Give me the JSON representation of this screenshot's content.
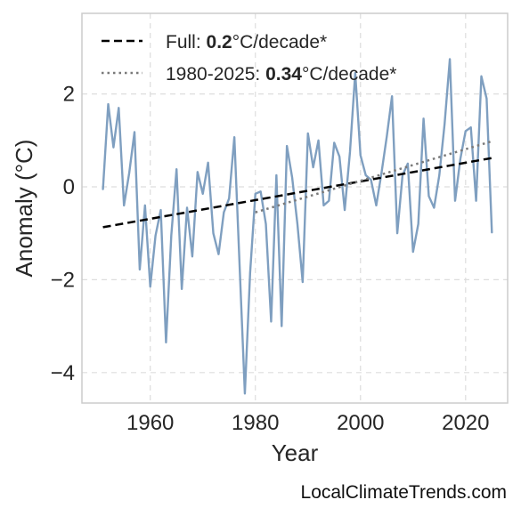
{
  "chart_data": {
    "type": "line",
    "xlabel": "Year",
    "ylabel": "Anomaly (°C)",
    "xlim": [
      1947,
      2028
    ],
    "ylim": [
      -4.7,
      3.8
    ],
    "x_ticks": [
      1960,
      1980,
      2000,
      2020
    ],
    "y_ticks": [
      -4,
      -2,
      0,
      2
    ],
    "y_tick_labels": [
      "−4",
      "−2",
      "0",
      "2"
    ],
    "grid": true,
    "legend_position": "top-left",
    "series": [
      {
        "color": "#7f9fc0",
        "x": [
          1951,
          1952,
          1953,
          1954,
          1955,
          1956,
          1957,
          1958,
          1959,
          1960,
          1961,
          1962,
          1963,
          1964,
          1965,
          1966,
          1967,
          1968,
          1969,
          1970,
          1971,
          1972,
          1973,
          1974,
          1975,
          1976,
          1977,
          1978,
          1979,
          1980,
          1981,
          1982,
          1983,
          1984,
          1985,
          1986,
          1987,
          1988,
          1989,
          1990,
          1991,
          1992,
          1993,
          1994,
          1995,
          1996,
          1997,
          1998,
          1999,
          2000,
          2001,
          2002,
          2003,
          2004,
          2005,
          2006,
          2007,
          2008,
          2009,
          2010,
          2011,
          2012,
          2013,
          2014,
          2015,
          2016,
          2017,
          2018,
          2019,
          2020,
          2021,
          2022,
          2023,
          2024,
          2025
        ],
        "y": [
          -0.05,
          1.78,
          0.85,
          1.7,
          -0.4,
          0.3,
          1.18,
          -1.78,
          -0.4,
          -2.15,
          -1.05,
          -0.5,
          -3.35,
          -1.05,
          0.38,
          -2.2,
          -0.45,
          -1.5,
          0.32,
          -0.15,
          0.52,
          -1.0,
          -1.45,
          -0.55,
          -0.25,
          1.07,
          -1.7,
          -4.45,
          -1.85,
          -0.15,
          -0.1,
          -0.8,
          -2.9,
          0.25,
          -3.0,
          0.88,
          0.2,
          -0.8,
          -2.05,
          1.15,
          0.42,
          1.0,
          -0.4,
          -0.3,
          0.95,
          0.65,
          -0.5,
          0.75,
          2.45,
          0.68,
          0.25,
          0.15,
          -0.4,
          0.3,
          1.08,
          1.95,
          -1.0,
          0.25,
          0.5,
          -1.4,
          -0.8,
          1.47,
          -0.2,
          -0.45,
          0.25,
          1.35,
          2.75,
          -0.3,
          0.6,
          1.2,
          1.28,
          -0.3,
          2.38,
          1.9,
          -0.98
        ]
      },
      {
        "name": "Full: 0.2°C/decade*",
        "style": "dashed",
        "color": "#000000",
        "x": [
          1951,
          2025
        ],
        "y": [
          -0.87,
          0.62
        ]
      },
      {
        "name": "1980-2025: 0.34°C/decade*",
        "style": "dotted",
        "color": "#7a7a7a",
        "x": [
          1980,
          2025
        ],
        "y": [
          -0.55,
          0.98
        ]
      }
    ],
    "legend": [
      {
        "prefix": "Full: ",
        "bold": "0.2",
        "suffix": "°C/decade*"
      },
      {
        "prefix": "1980-2025: ",
        "bold": "0.34",
        "suffix": "°C/decade*"
      }
    ]
  },
  "credit": "LocalClimateTrends.com"
}
